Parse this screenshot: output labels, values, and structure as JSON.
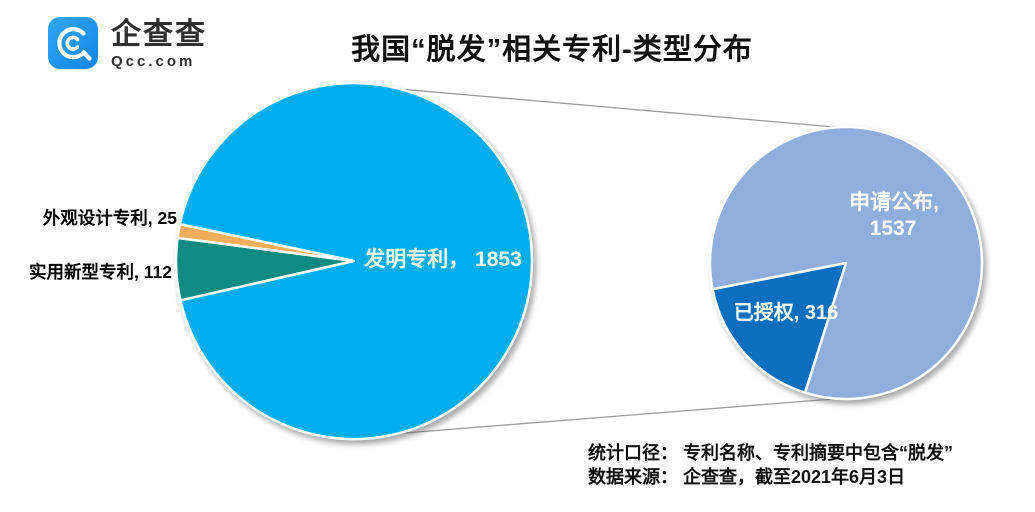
{
  "header": {
    "logo": {
      "brand_cn": "企查查",
      "brand_en": "Qcc.com",
      "brand_color": "#1E93EE"
    },
    "title": "我国“脱发”相关专利-类型分布"
  },
  "chart_data": [
    {
      "type": "pie",
      "key": "patent-types",
      "description": "我国“脱发”相关专利按类型分布",
      "total": 1990,
      "start_angle_deg": 167.2,
      "slices": [
        {
          "key": "utility-model",
          "label": "实用新型专利",
          "value": 112,
          "color": "#108B82"
        },
        {
          "key": "design",
          "label": "外观设计专利",
          "value": 25,
          "color": "#F0AE5C"
        },
        {
          "key": "invention",
          "label": "发明专利",
          "value": 1853,
          "color": "#00AEEF"
        }
      ]
    },
    {
      "type": "pie",
      "key": "invention-status",
      "description": "发明专利按状态分布",
      "total": 1853,
      "start_angle_deg": 107.5,
      "slices": [
        {
          "key": "granted",
          "label": "已授权",
          "value": 316,
          "color": "#0C6EBE"
        },
        {
          "key": "published",
          "label": "申请公布",
          "value": 1537,
          "color": "#8FAEDC"
        }
      ]
    }
  ],
  "pie_labels": {
    "invention": "发明专利， 1853",
    "design": "外观设计专利, 25",
    "utility": "实用新型专利, 112",
    "published_line1": "申请公布,",
    "published_line2": "1537",
    "granted": "已授权, 316"
  },
  "footer": {
    "stat_scope": "统计口径： 专利名称、专利摘要中包含“脱发”",
    "data_source": "数据来源： 企查查，截至2021年6月3日"
  }
}
